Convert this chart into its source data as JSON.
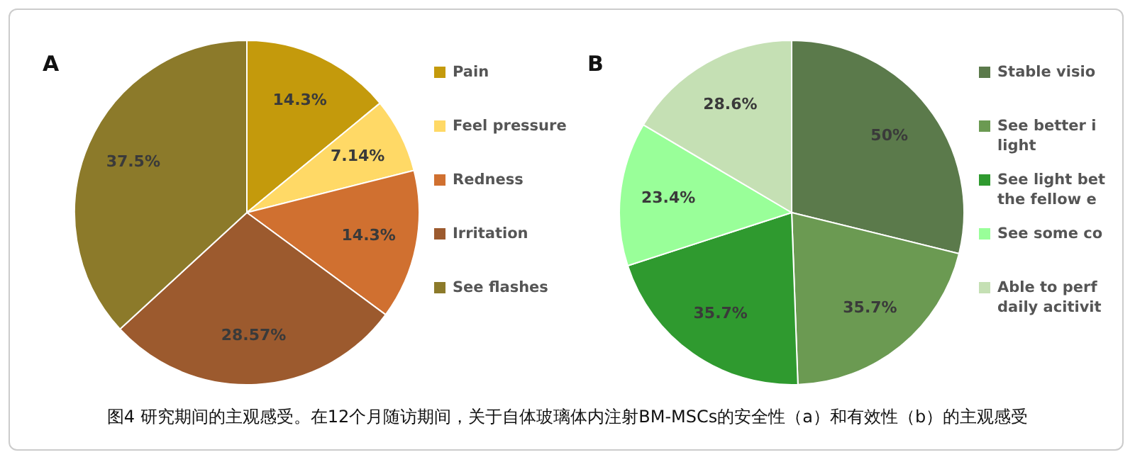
{
  "chart_data": [
    {
      "type": "pie",
      "title": "A",
      "categories": [
        "Pain",
        "Feel pressure",
        "Redness",
        "Irritation",
        "See flashes"
      ],
      "values": [
        14.3,
        7.14,
        14.3,
        28.57,
        37.5
      ],
      "colors": [
        "#c49a0c",
        "#ffd966",
        "#d07030",
        "#9c5a2e",
        "#8c7a2a"
      ],
      "value_labels": [
        "14.3%",
        "7.14%",
        "14.3%",
        "28.57%",
        "37.5%"
      ],
      "legend": "right",
      "annotations": [
        "图4 研究期间的主观感受。在12个月随访期间，关于自体玻璃体内注射BM-MSCs的安全性（a）和有效性（b）的主观感受"
      ]
    },
    {
      "type": "pie",
      "title": "B",
      "categories": [
        "Stable visio",
        "See better i light",
        "See light bet the fellow e",
        "See some co",
        "Able to perf daily acitivit"
      ],
      "values": [
        50,
        35.7,
        35.7,
        23.4,
        28.6
      ],
      "colors": [
        "#5b7a4b",
        "#6b9a52",
        "#2f9a2f",
        "#99ff99",
        "#c5e0b4"
      ],
      "value_labels": [
        "50%",
        "35.7%",
        "35.7%",
        "23.4%",
        "28.6%"
      ],
      "legend": "right"
    }
  ]
}
